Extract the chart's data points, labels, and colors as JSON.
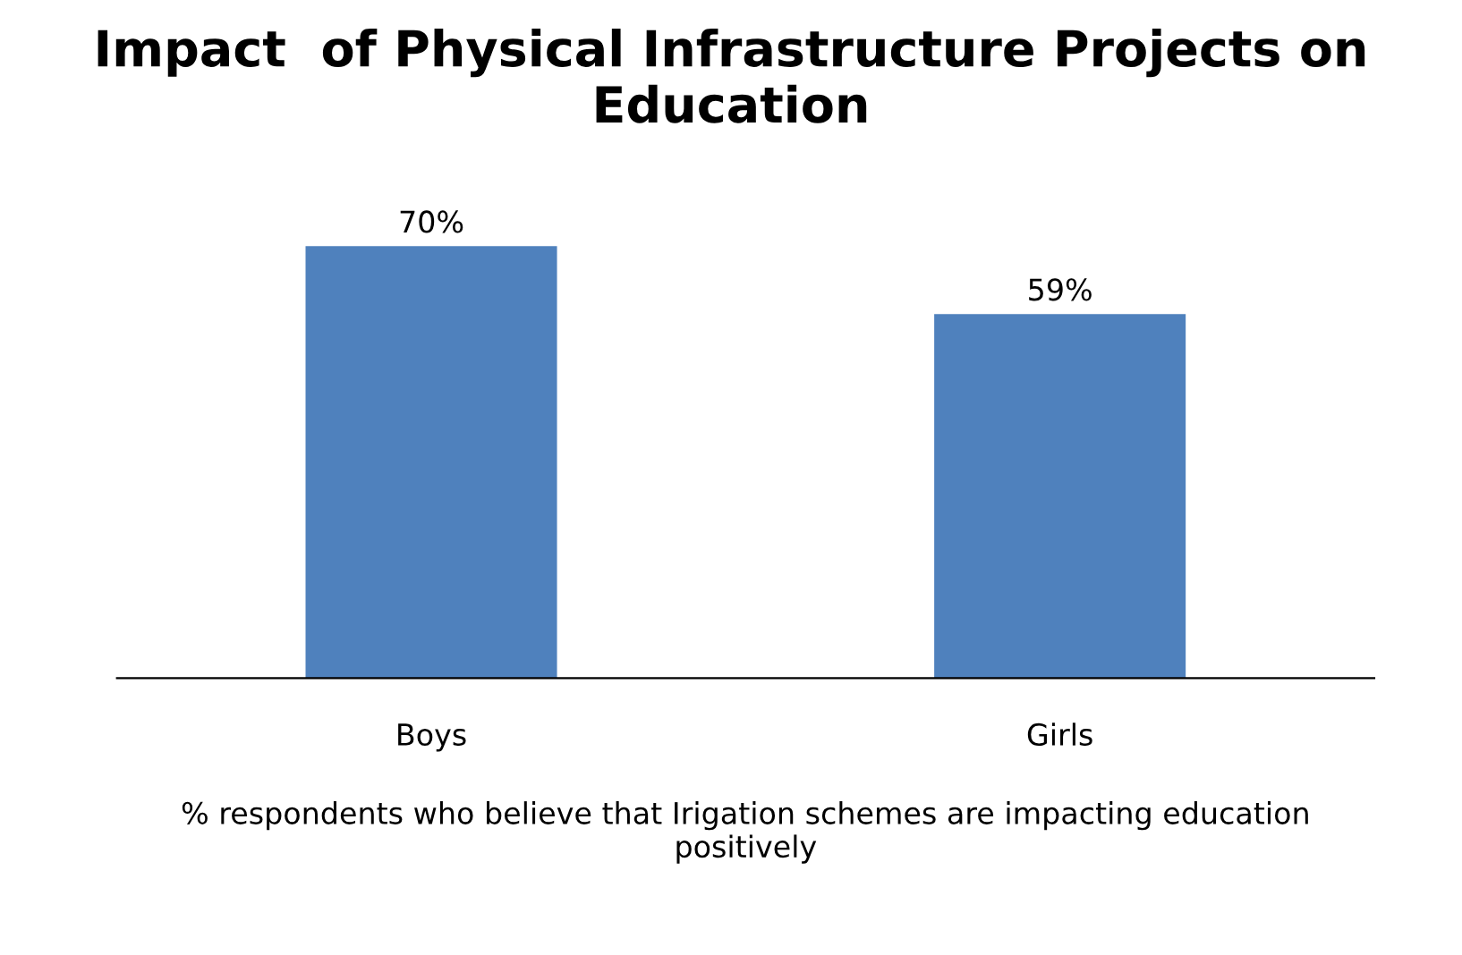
{
  "chart_data": {
    "type": "bar",
    "title": "Impact  of Physical Infrastructure Projects on\nEducation",
    "xlabel": "% respondents who believe that Irigation schemes are impacting education\npositively",
    "categories": [
      "Boys",
      "Girls"
    ],
    "series": [
      {
        "color": "#4f81bd",
        "values": [
          70,
          59
        ],
        "value_labels": [
          "70%",
          "59%"
        ]
      }
    ],
    "grid": false,
    "legend": false
  }
}
